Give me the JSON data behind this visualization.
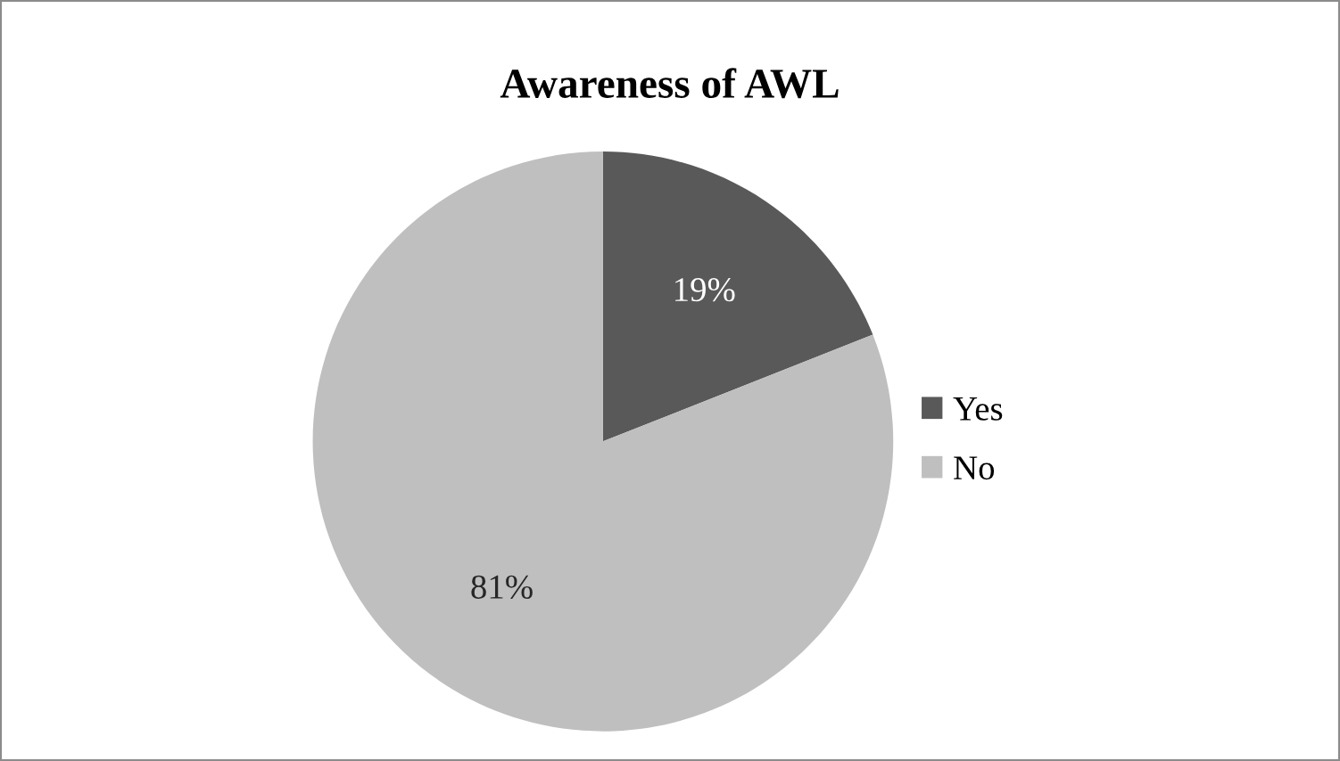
{
  "chart_data": {
    "type": "pie",
    "title": "Awareness of AWL",
    "categories": [
      "Yes",
      "No"
    ],
    "values": [
      19,
      81
    ],
    "colors": [
      "#595959",
      "#bfbfbf"
    ],
    "value_labels": [
      "19%",
      "81%"
    ],
    "legend": "right"
  }
}
